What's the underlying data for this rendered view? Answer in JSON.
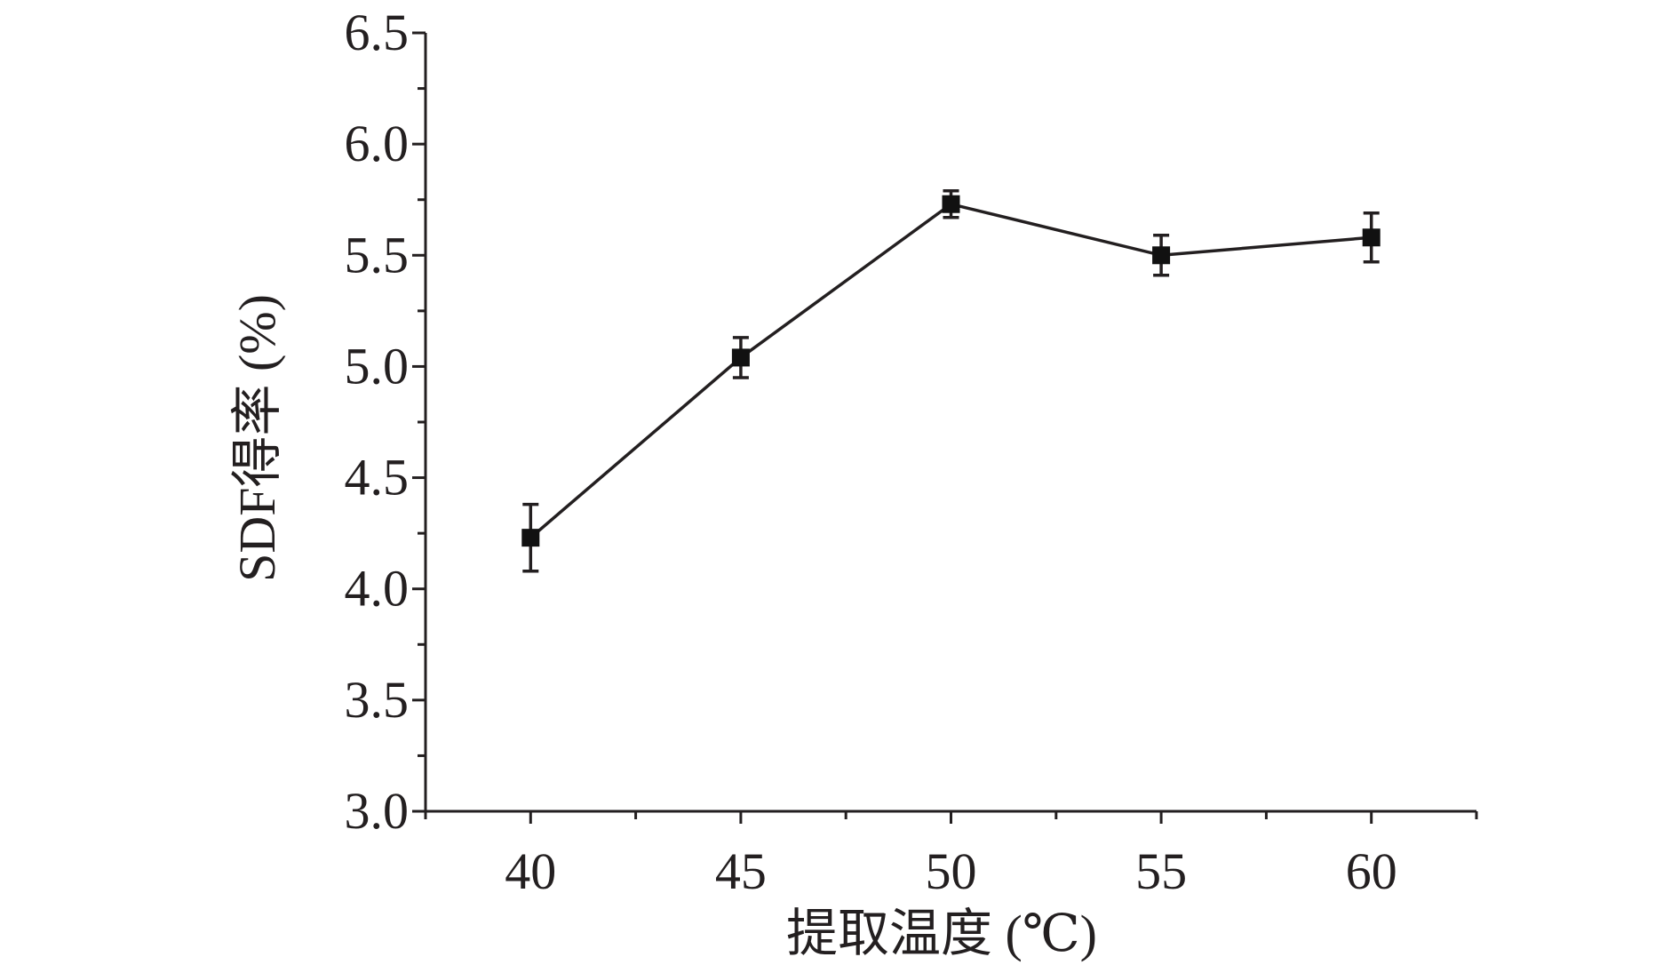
{
  "chart_data": {
    "type": "line",
    "title": "",
    "xlabel": "提取温度 (℃)",
    "ylabel": "SDF得率 (%)",
    "x": [
      40,
      45,
      50,
      55,
      60
    ],
    "xticks": [
      "40",
      "45",
      "50",
      "55",
      "60"
    ],
    "xlim": [
      37.5,
      62.5
    ],
    "ylim": [
      3.0,
      6.5
    ],
    "yticks": [
      "3.0",
      "3.5",
      "4.0",
      "4.5",
      "5.0",
      "5.5",
      "6.0",
      "6.5"
    ],
    "series": [
      {
        "values": [
          4.23,
          5.04,
          5.73,
          5.5,
          5.58
        ],
        "errors": [
          0.15,
          0.09,
          0.06,
          0.09,
          0.11
        ],
        "marker": "square",
        "color": "#231f20"
      }
    ],
    "grid": false,
    "legend": "none"
  }
}
